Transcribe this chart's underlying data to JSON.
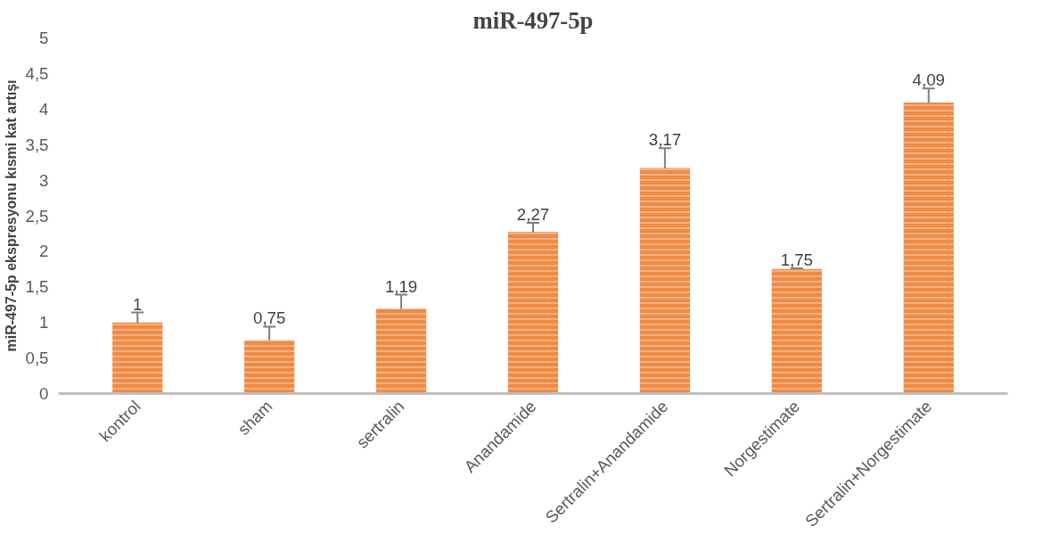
{
  "chart_data": {
    "type": "bar",
    "title": "miR-497-5p",
    "ylabel": "miR-497-5p ekspresyonu kısmi kat artışı",
    "categories": [
      "kontrol",
      "sham",
      "sertralin",
      "Anandamide",
      "Sertralin+Anandamide",
      "Norgestimate",
      "Sertralin+Norgestimate"
    ],
    "values": [
      1,
      0.75,
      1.19,
      2.27,
      3.17,
      1.75,
      4.09
    ],
    "errors": [
      0.14,
      0.19,
      0.2,
      0.13,
      0.28,
      0.01,
      0.2
    ],
    "value_labels": [
      "1",
      "0,75",
      "1,19",
      "2,27",
      "3,17",
      "1,75",
      "4,09"
    ],
    "color": "#f08a44",
    "ylim": [
      0,
      5
    ],
    "yticks": [
      0,
      {
        "value": 0.5,
        "label": "0,5"
      },
      1,
      {
        "value": 1.5,
        "label": "1,5"
      },
      2,
      {
        "value": 2.5,
        "label": "2,5"
      },
      3,
      {
        "value": 3.5,
        "label": "3,5"
      },
      4,
      {
        "value": 4.5,
        "label": "4,5"
      },
      5
    ],
    "grid": false
  }
}
